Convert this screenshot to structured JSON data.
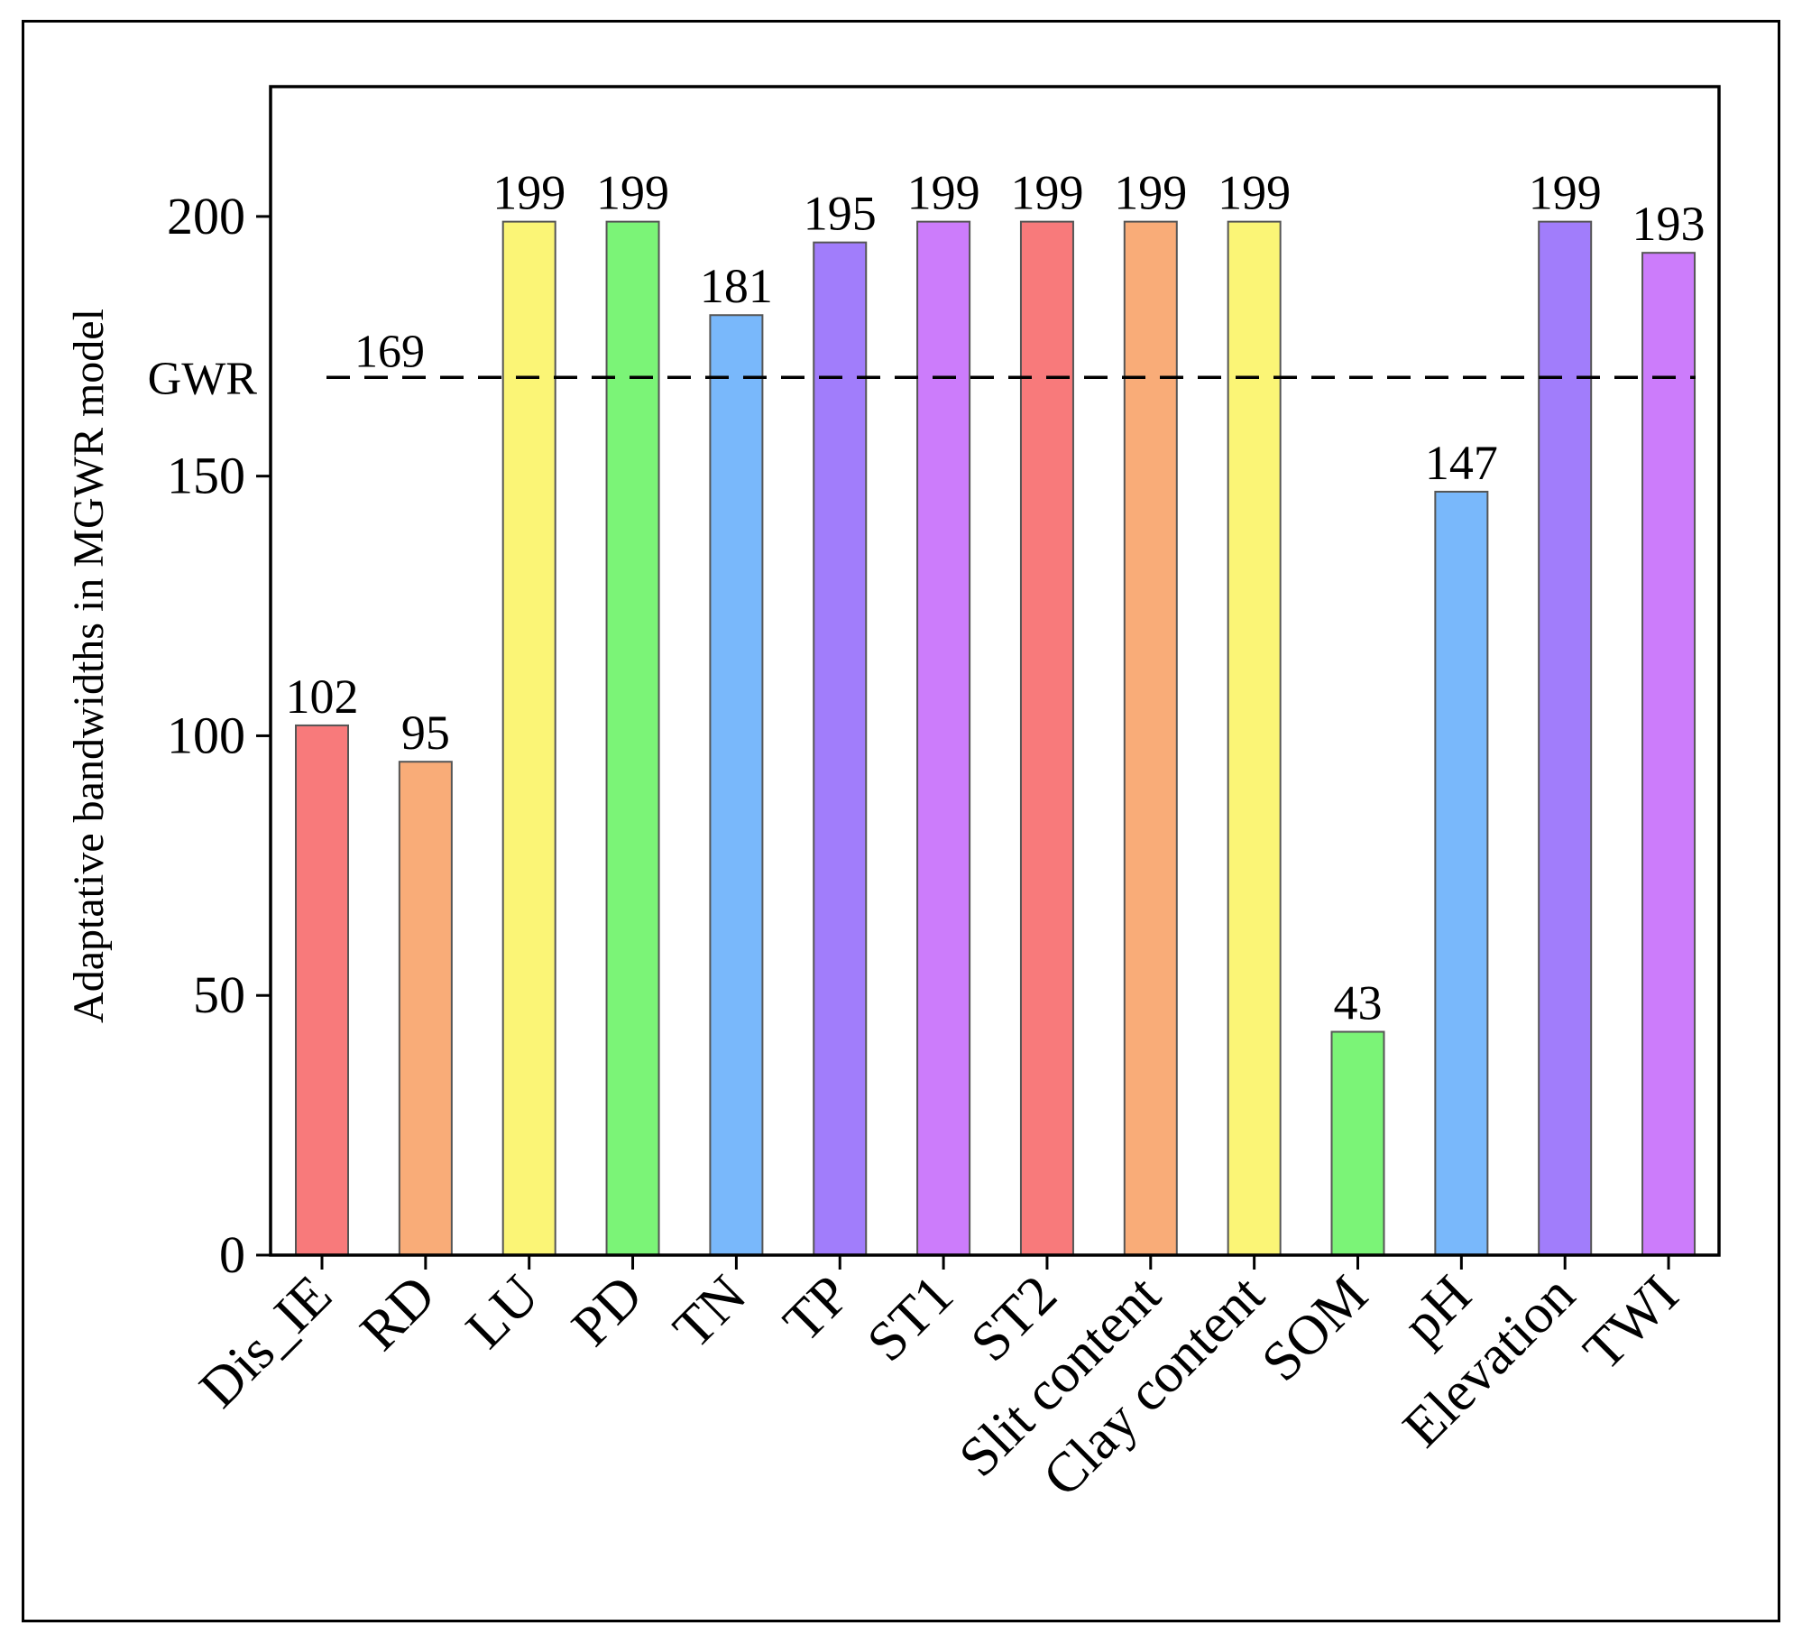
{
  "chart_data": {
    "type": "bar",
    "title": "",
    "xlabel": "",
    "ylabel": "Adaptative bandwidths in MGWR model",
    "ylim": [
      0,
      225
    ],
    "yticks": [
      0,
      50,
      100,
      150,
      200
    ],
    "grid": false,
    "categories": [
      "Dis_IE",
      "RD",
      "LU",
      "PD",
      "TN",
      "TP",
      "ST1",
      "ST2",
      "Slit content",
      "Clay content",
      "SOM",
      "pH",
      "Elevation",
      "TWI"
    ],
    "values": [
      102,
      95,
      199,
      199,
      181,
      195,
      199,
      199,
      199,
      199,
      43,
      147,
      199,
      193
    ],
    "data_labels": [
      "102",
      "95",
      "199",
      "199",
      "181",
      "195",
      "199",
      "199",
      "199",
      "199",
      "43",
      "147",
      "199",
      "193"
    ],
    "colors": [
      "#f87a7b",
      "#f9ac78",
      "#fbf576",
      "#7bf477",
      "#79b8fb",
      "#a17dfb",
      "#cc7cfb",
      "#f87a7b",
      "#f9ac78",
      "#fbf576",
      "#7bf477",
      "#79b8fb",
      "#a17dfb",
      "#cc7cfb"
    ],
    "reference_line": {
      "label": "GWR",
      "value": 169,
      "value_label": "169",
      "style": "dashed"
    }
  }
}
